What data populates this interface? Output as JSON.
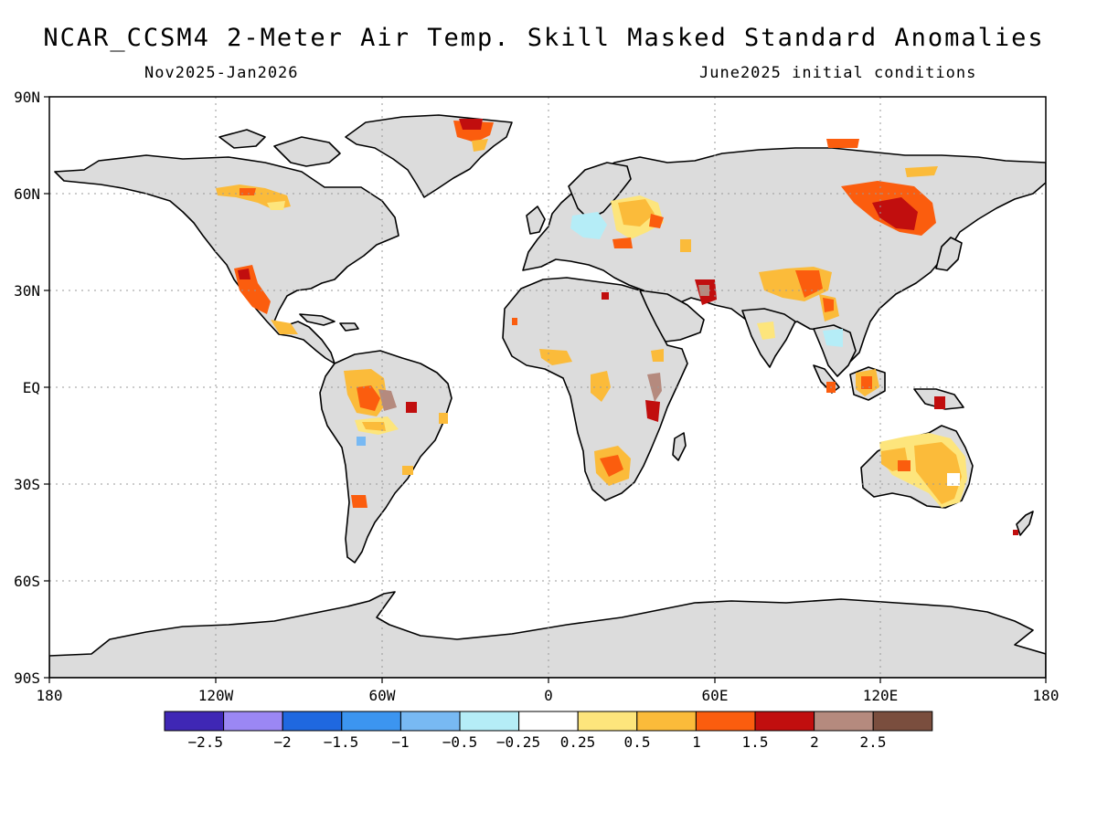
{
  "title": "NCAR_CCSM4 2-Meter Air Temp. Skill Masked Standard Anomalies",
  "forecast_period": "Nov2025-Jan2026",
  "initial_conditions": "June2025 initial conditions",
  "lat_labels": [
    "90N",
    "60N",
    "30N",
    "EQ",
    "30S",
    "60S",
    "90S"
  ],
  "lon_labels": [
    "180",
    "120W",
    "60W",
    "0",
    "60E",
    "120E",
    "180"
  ],
  "colorbar": {
    "colors": [
      "#3f27b5",
      "#9b87f4",
      "#1f68e0",
      "#3c95f0",
      "#78b9f3",
      "#b5edf7",
      "#ffffff",
      "#fde57c",
      "#fbbb3a",
      "#fb5d0e",
      "#c10e0e",
      "#b58a7e",
      "#7a4e3e"
    ],
    "labels": [
      "−2.5",
      "−2",
      "−1.5",
      "−1",
      "−0.5",
      "−0.25",
      "0.25",
      "0.5",
      "1",
      "1.5",
      "2",
      "2.5"
    ]
  },
  "land_color": "#dcdcdc",
  "ocean_color": "#ffffff"
}
